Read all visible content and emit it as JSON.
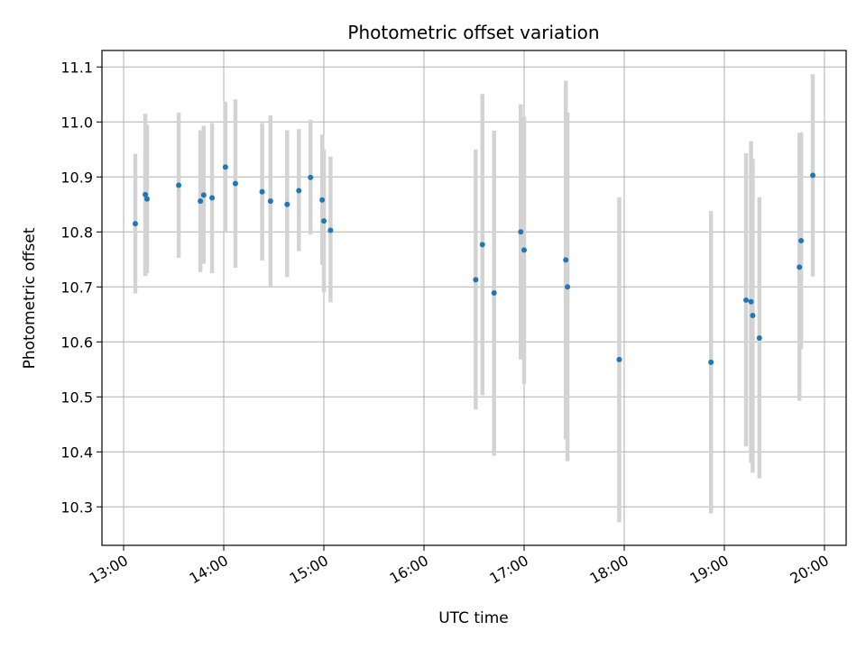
{
  "chart_data": {
    "type": "scatter",
    "title": "Photometric offset variation",
    "xlabel": "UTC time",
    "ylabel": "Photometric offset",
    "x_tick_labels": [
      "13:00",
      "14:00",
      "15:00",
      "16:00",
      "17:00",
      "18:00",
      "19:00",
      "20:00"
    ],
    "y_tick_labels": [
      "10.3",
      "10.4",
      "10.5",
      "10.6",
      "10.7",
      "10.8",
      "10.9",
      "11.0",
      "11.1"
    ],
    "xlim": [
      "12:47",
      "20:13"
    ],
    "ylim": [
      10.23,
      11.13
    ],
    "grid": true,
    "colors": {
      "points": "#1f77b4",
      "error_bars": "#d3d3d3",
      "grid": "#b0b0b0"
    },
    "points": [
      {
        "x": "13:07",
        "y": 10.815,
        "lo": 10.688,
        "hi": 10.942
      },
      {
        "x": "13:13",
        "y": 10.868,
        "lo": 10.72,
        "hi": 11.015
      },
      {
        "x": "13:14",
        "y": 10.86,
        "lo": 10.725,
        "hi": 10.995
      },
      {
        "x": "13:33",
        "y": 10.885,
        "lo": 10.753,
        "hi": 11.017
      },
      {
        "x": "13:46",
        "y": 10.856,
        "lo": 10.727,
        "hi": 10.985
      },
      {
        "x": "13:48",
        "y": 10.867,
        "lo": 10.742,
        "hi": 10.993
      },
      {
        "x": "13:53",
        "y": 10.862,
        "lo": 10.725,
        "hi": 10.998
      },
      {
        "x": "14:01",
        "y": 10.918,
        "lo": 10.8,
        "hi": 11.037
      },
      {
        "x": "14:07",
        "y": 10.888,
        "lo": 10.735,
        "hi": 11.041
      },
      {
        "x": "14:23",
        "y": 10.873,
        "lo": 10.748,
        "hi": 10.998
      },
      {
        "x": "14:28",
        "y": 10.856,
        "lo": 10.7,
        "hi": 11.012
      },
      {
        "x": "14:38",
        "y": 10.85,
        "lo": 10.718,
        "hi": 10.985
      },
      {
        "x": "14:45",
        "y": 10.875,
        "lo": 10.765,
        "hi": 10.987
      },
      {
        "x": "14:52",
        "y": 10.899,
        "lo": 10.795,
        "hi": 11.004
      },
      {
        "x": "14:59",
        "y": 10.858,
        "lo": 10.74,
        "hi": 10.977
      },
      {
        "x": "15:00",
        "y": 10.82,
        "lo": 10.69,
        "hi": 10.95
      },
      {
        "x": "15:04",
        "y": 10.803,
        "lo": 10.672,
        "hi": 10.937
      },
      {
        "x": "16:31",
        "y": 10.713,
        "lo": 10.477,
        "hi": 10.95
      },
      {
        "x": "16:35",
        "y": 10.777,
        "lo": 10.503,
        "hi": 11.051
      },
      {
        "x": "16:42",
        "y": 10.689,
        "lo": 10.393,
        "hi": 10.984
      },
      {
        "x": "16:58",
        "y": 10.8,
        "lo": 10.568,
        "hi": 11.032
      },
      {
        "x": "17:00",
        "y": 10.767,
        "lo": 10.524,
        "hi": 11.01
      },
      {
        "x": "17:25",
        "y": 10.749,
        "lo": 10.423,
        "hi": 11.075
      },
      {
        "x": "17:26",
        "y": 10.7,
        "lo": 10.383,
        "hi": 11.017
      },
      {
        "x": "17:57",
        "y": 10.568,
        "lo": 10.272,
        "hi": 10.863
      },
      {
        "x": "18:52",
        "y": 10.563,
        "lo": 10.288,
        "hi": 10.838
      },
      {
        "x": "19:13",
        "y": 10.676,
        "lo": 10.41,
        "hi": 10.943
      },
      {
        "x": "19:16",
        "y": 10.673,
        "lo": 10.38,
        "hi": 10.965
      },
      {
        "x": "19:17",
        "y": 10.648,
        "lo": 10.362,
        "hi": 10.933
      },
      {
        "x": "19:21",
        "y": 10.607,
        "lo": 10.352,
        "hi": 10.863
      },
      {
        "x": "19:45",
        "y": 10.736,
        "lo": 10.493,
        "hi": 10.98
      },
      {
        "x": "19:46",
        "y": 10.784,
        "lo": 10.587,
        "hi": 10.981
      },
      {
        "x": "19:53",
        "y": 10.903,
        "lo": 10.719,
        "hi": 11.087
      }
    ]
  }
}
